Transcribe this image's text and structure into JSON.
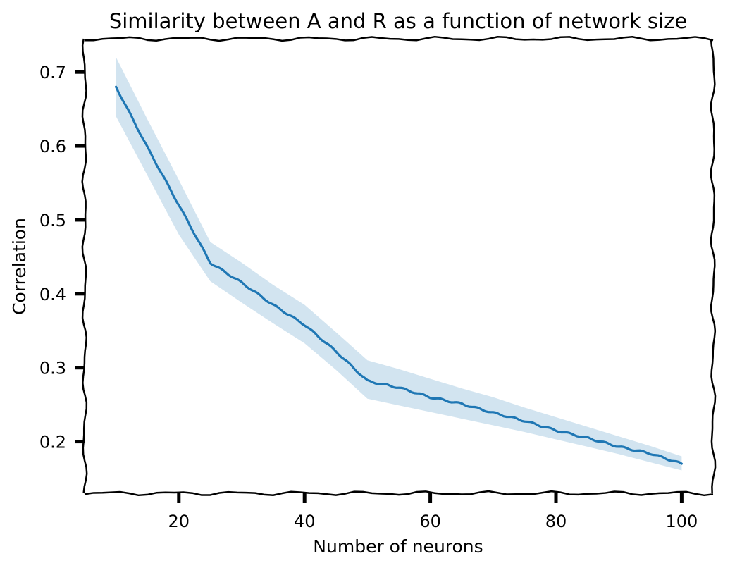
{
  "chart_data": {
    "type": "line",
    "title": "Similarity between A and R as a function of network size",
    "xlabel": "Number of neurons",
    "ylabel": "Correlation",
    "xlim": [
      5,
      105
    ],
    "ylim": [
      0.13,
      0.745
    ],
    "xticks": [
      20,
      40,
      60,
      80,
      100
    ],
    "yticks": [
      0.2,
      0.3,
      0.4,
      0.5,
      0.6,
      0.7
    ],
    "grid": false,
    "style": "xkcd",
    "line_color": "#1f77b4",
    "series": [
      {
        "x": [
          10,
          15,
          20,
          25,
          30,
          35,
          40,
          45,
          50,
          55,
          60,
          65,
          70,
          75,
          80,
          85,
          90,
          95,
          100
        ],
        "y": [
          0.68,
          0.598,
          0.52,
          0.442,
          0.415,
          0.385,
          0.358,
          0.322,
          0.282,
          0.273,
          0.26,
          0.251,
          0.239,
          0.228,
          0.215,
          0.205,
          0.193,
          0.184,
          0.17
        ],
        "lower": [
          0.64,
          0.56,
          0.48,
          0.417,
          0.388,
          0.36,
          0.333,
          0.297,
          0.258,
          0.249,
          0.24,
          0.231,
          0.222,
          0.213,
          0.203,
          0.193,
          0.183,
          0.172,
          0.161
        ],
        "upper": [
          0.72,
          0.636,
          0.554,
          0.47,
          0.442,
          0.412,
          0.385,
          0.348,
          0.31,
          0.298,
          0.285,
          0.272,
          0.26,
          0.246,
          0.233,
          0.22,
          0.207,
          0.194,
          0.18
        ]
      }
    ]
  }
}
